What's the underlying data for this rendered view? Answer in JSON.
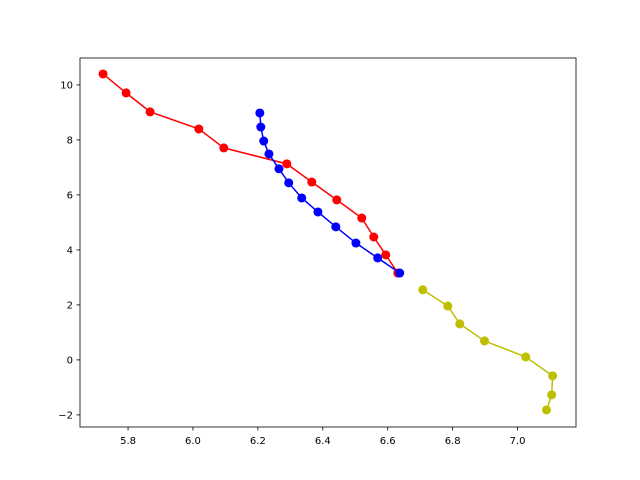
{
  "chart_data": {
    "type": "line",
    "xlim": [
      5.652,
      7.18
    ],
    "ylim": [
      -2.44,
      10.98
    ],
    "xticks": [
      5.8,
      {
        "value": 6.0,
        "label": "6.0"
      },
      6.2,
      6.4,
      6.6,
      6.8,
      {
        "value": 7.0,
        "label": "7.0"
      }
    ],
    "yticks": [
      {
        "value": -2,
        "label": "−2"
      },
      0,
      2,
      4,
      6,
      8,
      10
    ],
    "series": [
      {
        "color": "#ff0000",
        "x": [
          5.723,
          5.794,
          5.868,
          6.018,
          6.095,
          6.289,
          6.366,
          6.443,
          6.52,
          6.557,
          6.594,
          6.631
        ],
        "values": [
          10.4,
          9.71,
          9.02,
          8.4,
          7.71,
          7.13,
          6.47,
          5.82,
          5.16,
          4.47,
          3.82,
          3.16
        ]
      },
      {
        "color": "#0000ff",
        "x": [
          6.206,
          6.209,
          6.218,
          6.234,
          6.265,
          6.295,
          6.335,
          6.385,
          6.44,
          6.502,
          6.569,
          6.637
        ],
        "values": [
          8.98,
          8.47,
          7.96,
          7.49,
          6.95,
          6.44,
          5.89,
          5.38,
          4.84,
          4.25,
          3.71,
          3.16
        ]
      },
      {
        "color": "#bfbf00",
        "x": [
          6.708,
          6.785,
          6.822,
          6.898,
          7.025,
          7.108,
          7.105,
          7.089
        ],
        "values": [
          2.55,
          1.96,
          1.31,
          0.69,
          0.11,
          -0.58,
          -1.27,
          -1.82
        ]
      }
    ]
  }
}
